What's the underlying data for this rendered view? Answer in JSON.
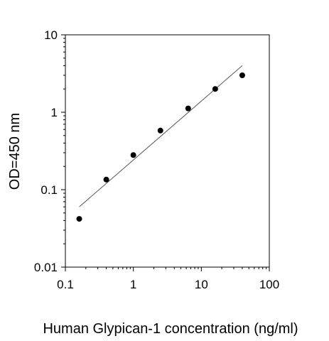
{
  "chart_data": {
    "type": "scatter",
    "title": "",
    "xlabel": "Human Glypican-1 concentration (ng/ml)",
    "ylabel": "OD=450 nm",
    "x_scale": "log",
    "y_scale": "log",
    "xlim": [
      0.1,
      100
    ],
    "ylim": [
      0.01,
      10
    ],
    "x_ticks": [
      "0.1",
      "1",
      "10",
      "100"
    ],
    "y_ticks": [
      "0.01",
      "0.1",
      "1",
      "10"
    ],
    "grid": false,
    "legend": "none",
    "series": [
      {
        "type": "scatter",
        "x": [
          0.16,
          0.4,
          1.0,
          2.5,
          6.4,
          16,
          40
        ],
        "y": [
          0.042,
          0.135,
          0.28,
          0.58,
          1.12,
          2.0,
          3.0
        ]
      },
      {
        "type": "line",
        "x": [
          0.16,
          40
        ],
        "y": [
          0.06,
          4.0
        ]
      }
    ],
    "colors": {
      "points": "#000000",
      "fit_line": "#555555",
      "axes": "#000000"
    }
  }
}
